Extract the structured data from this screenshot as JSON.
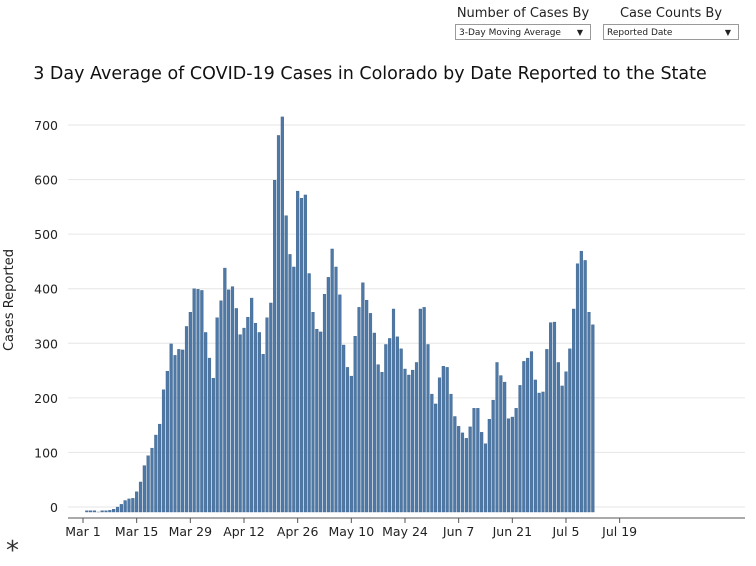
{
  "filters": {
    "cases_by": {
      "label": "Number of Cases By",
      "selected": "3-Day Moving Average"
    },
    "counts_by": {
      "label": "Case Counts By",
      "selected": "Reported Date"
    }
  },
  "footnote": "*",
  "colors": {
    "bar": "#4e79a7",
    "bar_edge": "#3a6089",
    "grid": "#e6e6e6",
    "axis": "#555555"
  },
  "chart_data": {
    "type": "bar",
    "title": "3 Day Average of COVID-19 Cases in Colorado by Date Reported to the State",
    "xlabel": "",
    "ylabel": "Cases Reported",
    "ylim": [
      -20,
      735
    ],
    "yticks": [
      0,
      100,
      200,
      300,
      400,
      500,
      600,
      700
    ],
    "x_start": "Mar 1",
    "xticks": [
      {
        "day": 0,
        "label": "Mar 1"
      },
      {
        "day": 14,
        "label": "Mar 15"
      },
      {
        "day": 28,
        "label": "Mar 29"
      },
      {
        "day": 42,
        "label": "Apr 12"
      },
      {
        "day": 56,
        "label": "Apr 26"
      },
      {
        "day": 70,
        "label": "May 10"
      },
      {
        "day": 84,
        "label": "May 24"
      },
      {
        "day": 98,
        "label": "Jun 7"
      },
      {
        "day": 112,
        "label": "Jun 21"
      },
      {
        "day": 126,
        "label": "Jul 5"
      },
      {
        "day": 140,
        "label": "Jul 19"
      }
    ],
    "first_day": 1,
    "values": [
      1,
      1,
      1,
      0,
      1,
      1,
      3,
      5,
      9,
      14,
      21,
      24,
      25,
      37,
      55,
      85,
      103,
      117,
      141,
      161,
      224,
      258,
      308,
      287,
      298,
      297,
      340,
      366,
      409,
      408,
      406,
      329,
      282,
      245,
      356,
      387,
      447,
      407,
      413,
      373,
      325,
      337,
      357,
      392,
      346,
      329,
      289,
      356,
      383,
      608,
      690,
      724,
      543,
      472,
      449,
      588,
      575,
      581,
      437,
      366,
      335,
      330,
      399,
      430,
      482,
      449,
      398,
      306,
      265,
      249,
      322,
      375,
      420,
      388,
      364,
      328,
      270,
      256,
      307,
      318,
      372,
      321,
      299,
      262,
      251,
      260,
      274,
      372,
      375,
      307,
      216,
      198,
      246,
      267,
      265,
      216,
      175,
      157,
      145,
      135,
      156,
      190,
      190,
      146,
      125,
      170,
      205,
      274,
      250,
      238,
      171,
      174,
      190,
      232,
      276,
      282,
      294,
      242,
      218,
      220,
      298,
      347,
      348,
      274,
      231,
      257,
      299,
      372,
      455,
      478,
      461,
      366,
      343
    ]
  }
}
